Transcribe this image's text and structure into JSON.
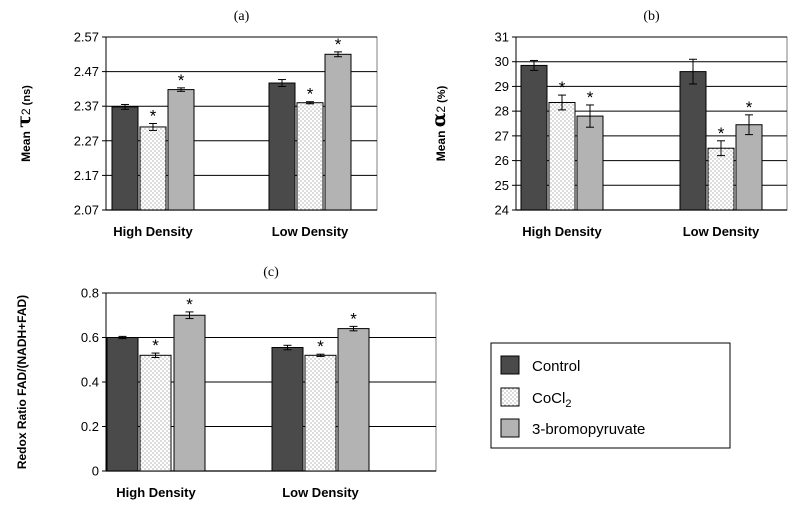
{
  "colors": {
    "control": "#4a4a4a",
    "cocl2": "#ffffff",
    "bromopyruvate": "#b3b3b3",
    "panel_bg": "#ffffff",
    "axis": "#000000"
  },
  "legend": {
    "entries": [
      {
        "label": "Control"
      },
      {
        "label": "CoCl",
        "sub": "2"
      },
      {
        "label": "3-bromopyruvate"
      }
    ]
  },
  "chart_data": [
    {
      "type": "bar",
      "panel": "(a)",
      "ylabel_prefix": "Mean ",
      "ylabel_symbol": "τ",
      "ylabel_sub": "2",
      "ylabel_suffix": " (ns)",
      "categories": [
        "High Density",
        "Low Density"
      ],
      "ylim": [
        2.07,
        2.57
      ],
      "yticks": [
        "2.07",
        "2.17",
        "2.27",
        "2.37",
        "2.47",
        "2.57"
      ],
      "ytick_values": [
        2.07,
        2.17,
        2.27,
        2.37,
        2.47,
        2.57
      ],
      "series": [
        {
          "name": "Control",
          "values": [
            2.368,
            2.437
          ],
          "errors": [
            0.007,
            0.01
          ],
          "sig": [
            false,
            false
          ]
        },
        {
          "name": "CoCl2",
          "values": [
            2.31,
            2.38
          ],
          "errors": [
            0.01,
            0.003
          ],
          "sig": [
            true,
            true
          ]
        },
        {
          "name": "3-bromopyruvate",
          "values": [
            2.418,
            2.52
          ],
          "errors": [
            0.005,
            0.007
          ],
          "sig": [
            true,
            true
          ]
        }
      ],
      "star": "*"
    },
    {
      "type": "bar",
      "panel": "(b)",
      "ylabel_prefix": "Mean ",
      "ylabel_symbol": "α",
      "ylabel_sub": "2",
      "ylabel_suffix": " (%)",
      "categories": [
        "High Density",
        "Low Density"
      ],
      "ylim": [
        24,
        31
      ],
      "yticks": [
        "24",
        "25",
        "26",
        "27",
        "28",
        "29",
        "30",
        "31"
      ],
      "ytick_values": [
        24,
        25,
        26,
        27,
        28,
        29,
        30,
        31
      ],
      "series": [
        {
          "name": "Control",
          "values": [
            29.85,
            29.6
          ],
          "errors": [
            0.2,
            0.5
          ],
          "sig": [
            false,
            false
          ]
        },
        {
          "name": "CoCl2",
          "values": [
            28.35,
            26.5
          ],
          "errors": [
            0.3,
            0.3
          ],
          "sig": [
            true,
            true
          ]
        },
        {
          "name": "3-bromopyruvate",
          "values": [
            27.8,
            27.45
          ],
          "errors": [
            0.45,
            0.4
          ],
          "sig": [
            true,
            true
          ]
        }
      ],
      "star": "*"
    },
    {
      "type": "bar",
      "panel": "(c)",
      "ylabel_text": "Redox Ratio FAD/(NADH+FAD)",
      "categories": [
        "High Density",
        "Low Density"
      ],
      "ylim": [
        0,
        0.8
      ],
      "yticks": [
        "0",
        "0.2",
        "0.4",
        "0.6",
        "0.8"
      ],
      "ytick_values": [
        0,
        0.2,
        0.4,
        0.6,
        0.8
      ],
      "series": [
        {
          "name": "Control",
          "values": [
            0.6,
            0.555
          ],
          "errors": [
            0.005,
            0.01
          ],
          "sig": [
            false,
            false
          ]
        },
        {
          "name": "CoCl2",
          "values": [
            0.52,
            0.52
          ],
          "errors": [
            0.01,
            0.005
          ],
          "sig": [
            true,
            true
          ]
        },
        {
          "name": "3-bromopyruvate",
          "values": [
            0.7,
            0.64
          ],
          "errors": [
            0.015,
            0.01
          ],
          "sig": [
            true,
            true
          ]
        }
      ],
      "star": "*"
    }
  ]
}
